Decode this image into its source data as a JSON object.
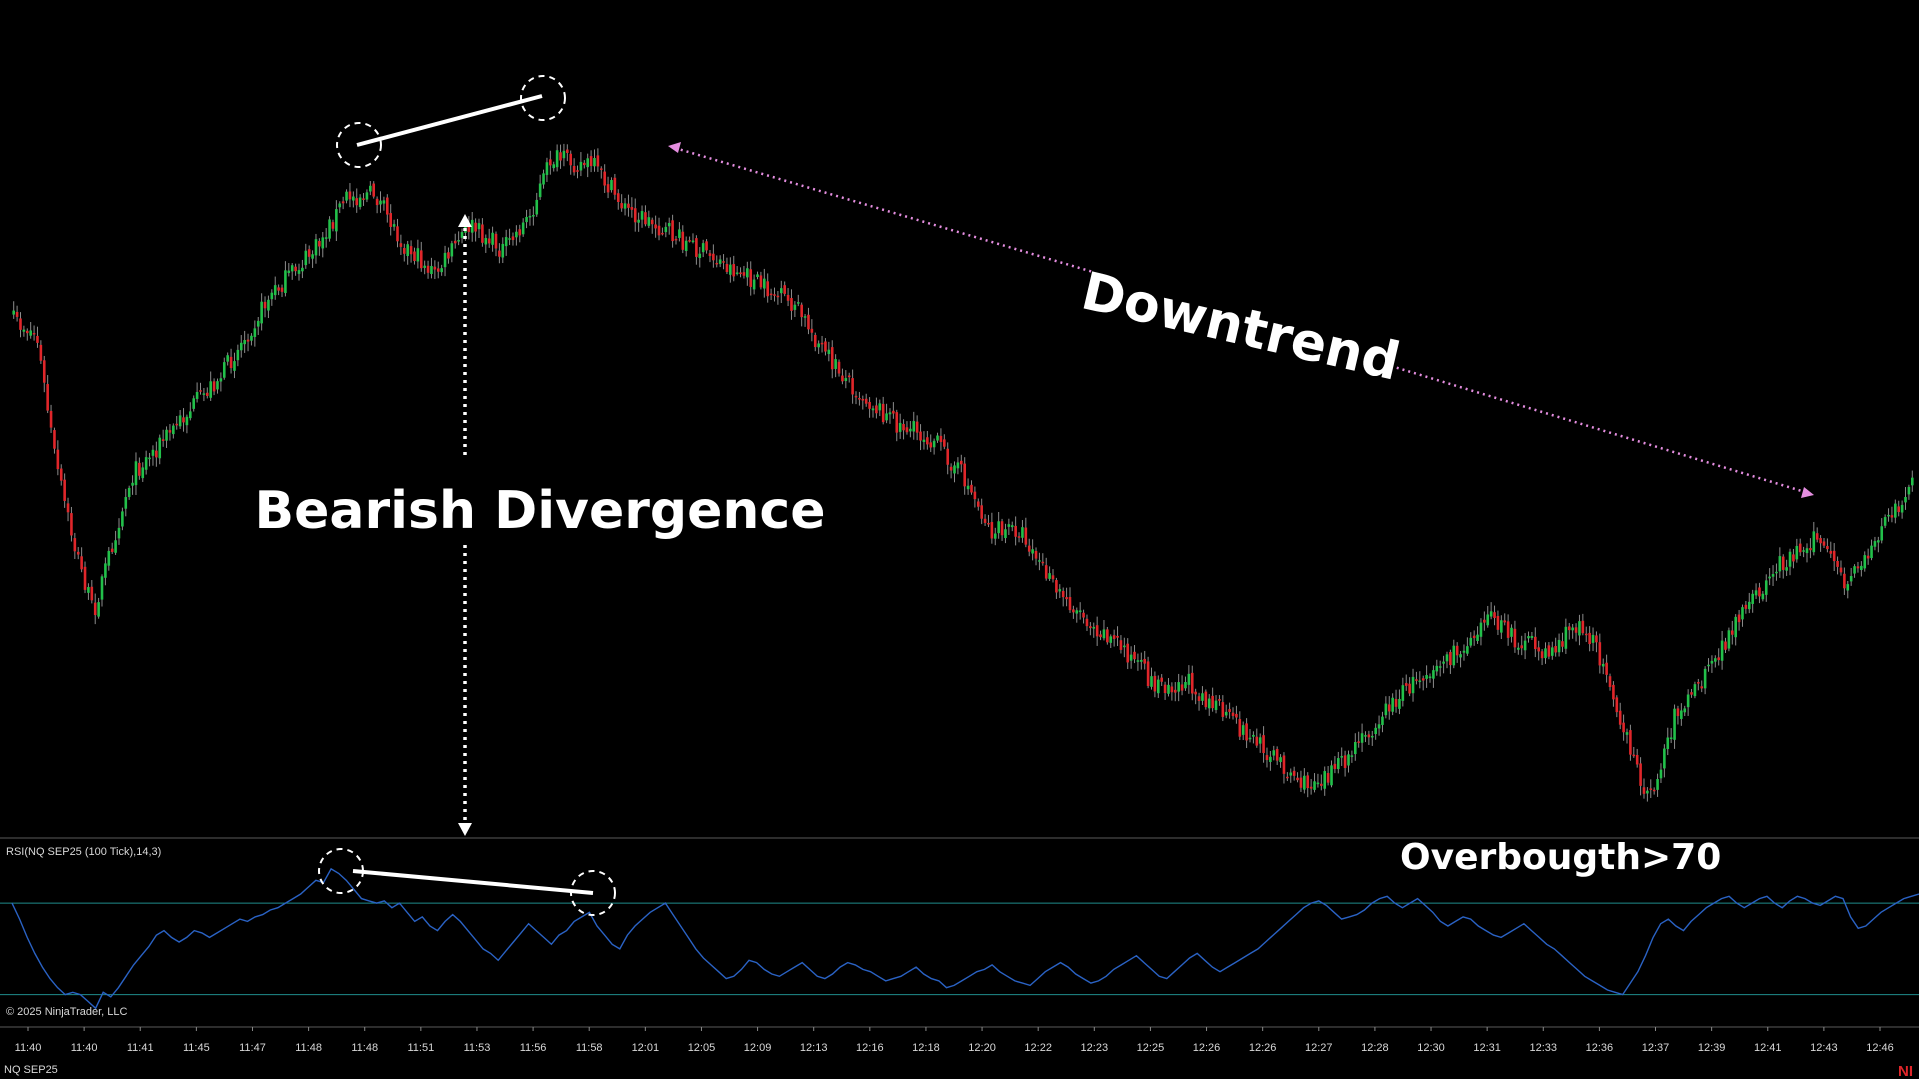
{
  "chart_data": [
    {
      "type": "candlestick",
      "series_name": "NQ SEP25",
      "up_color": "#22c04a",
      "down_color": "#e0262a",
      "wick_color": "#8c8c8c",
      "price_path_relative": [
        [
          0.0,
          0.32
        ],
        [
          0.012,
          0.34
        ],
        [
          0.022,
          0.52
        ],
        [
          0.032,
          0.64
        ],
        [
          0.042,
          0.735
        ],
        [
          0.05,
          0.655
        ],
        [
          0.062,
          0.54
        ],
        [
          0.085,
          0.47
        ],
        [
          0.11,
          0.395
        ],
        [
          0.135,
          0.285
        ],
        [
          0.16,
          0.215
        ],
        [
          0.175,
          0.145
        ],
        [
          0.19,
          0.14
        ],
        [
          0.205,
          0.21
        ],
        [
          0.222,
          0.255
        ],
        [
          0.24,
          0.185
        ],
        [
          0.258,
          0.22
        ],
        [
          0.272,
          0.17
        ],
        [
          0.283,
          0.09
        ],
        [
          0.305,
          0.1
        ],
        [
          0.322,
          0.16
        ],
        [
          0.345,
          0.195
        ],
        [
          0.368,
          0.23
        ],
        [
          0.39,
          0.265
        ],
        [
          0.412,
          0.3
        ],
        [
          0.428,
          0.37
        ],
        [
          0.446,
          0.425
        ],
        [
          0.465,
          0.465
        ],
        [
          0.485,
          0.49
        ],
        [
          0.5,
          0.54
        ],
        [
          0.515,
          0.62
        ],
        [
          0.53,
          0.615
        ],
        [
          0.548,
          0.7
        ],
        [
          0.566,
          0.745
        ],
        [
          0.585,
          0.785
        ],
        [
          0.6,
          0.835
        ],
        [
          0.62,
          0.835
        ],
        [
          0.64,
          0.885
        ],
        [
          0.66,
          0.93
        ],
        [
          0.68,
          0.98
        ],
        [
          0.7,
          0.95
        ],
        [
          0.72,
          0.88
        ],
        [
          0.742,
          0.82
        ],
        [
          0.762,
          0.79
        ],
        [
          0.775,
          0.735
        ],
        [
          0.792,
          0.775
        ],
        [
          0.81,
          0.79
        ],
        [
          0.825,
          0.745
        ],
        [
          0.84,
          0.82
        ],
        [
          0.852,
          0.94
        ],
        [
          0.862,
          1.0
        ],
        [
          0.875,
          0.88
        ],
        [
          0.89,
          0.83
        ],
        [
          0.91,
          0.74
        ],
        [
          0.93,
          0.665
        ],
        [
          0.95,
          0.625
        ],
        [
          0.965,
          0.7
        ],
        [
          0.985,
          0.61
        ],
        [
          1.0,
          0.55
        ]
      ]
    },
    {
      "type": "line",
      "indicator": "RSI",
      "line_color": "#2a62c4",
      "levels": [
        70,
        30
      ],
      "level_color": "#1f8c8c",
      "y_range": [
        18,
        95
      ],
      "values": [
        70,
        63,
        55,
        48,
        42,
        37,
        33,
        30,
        31,
        30,
        27,
        24,
        31,
        29,
        33,
        38,
        43,
        47,
        51,
        56,
        58,
        55,
        53,
        55,
        58,
        57,
        55,
        57,
        59,
        61,
        63,
        62,
        64,
        65,
        67,
        68,
        70,
        72,
        74,
        77,
        80,
        79,
        85,
        83,
        80,
        76,
        72,
        71,
        70,
        71,
        68,
        70,
        66,
        62,
        64,
        60,
        58,
        62,
        65,
        62,
        58,
        54,
        50,
        48,
        45,
        49,
        53,
        57,
        61,
        58,
        55,
        52,
        56,
        58,
        62,
        64,
        66,
        60,
        56,
        52,
        50,
        56,
        60,
        63,
        66,
        68,
        70,
        65,
        60,
        55,
        50,
        46,
        43,
        40,
        37,
        38,
        41,
        45,
        44,
        41,
        39,
        38,
        40,
        42,
        44,
        41,
        38,
        37,
        39,
        42,
        44,
        43,
        41,
        40,
        38,
        36,
        37,
        38,
        40,
        42,
        39,
        37,
        36,
        33,
        34,
        36,
        38,
        40,
        41,
        43,
        40,
        38,
        36,
        35,
        34,
        37,
        40,
        42,
        44,
        42,
        39,
        37,
        35,
        36,
        38,
        41,
        43,
        45,
        47,
        44,
        41,
        38,
        37,
        40,
        43,
        46,
        48,
        45,
        42,
        40,
        42,
        44,
        46,
        48,
        50,
        53,
        56,
        59,
        62,
        65,
        68,
        70,
        71,
        69,
        66,
        63,
        64,
        65,
        67,
        70,
        72,
        73,
        70,
        68,
        70,
        72,
        69,
        66,
        62,
        60,
        62,
        64,
        63,
        60,
        58,
        56,
        55,
        57,
        59,
        61,
        58,
        55,
        52,
        50,
        47,
        44,
        41,
        38,
        36,
        34,
        32,
        31,
        30,
        35,
        40,
        47,
        55,
        61,
        63,
        60,
        58,
        62,
        65,
        68,
        70,
        72,
        73,
        70,
        68,
        70,
        72,
        73,
        70,
        68,
        71,
        73,
        72,
        70,
        69,
        71,
        73,
        72,
        64,
        59,
        60,
        63,
        66,
        68,
        70,
        72,
        73,
        74
      ]
    }
  ],
  "rsi_caption": "RSI(NQ SEP25 (100 Tick),14,3)",
  "copyright": "© 2025 NinjaTrader, LLC",
  "instrument_caption": "NQ SEP25",
  "corner_logo": "NI",
  "annotations": {
    "bearish_divergence": "Bearish Divergence",
    "downtrend": "Downtrend",
    "overbought": "Overbougth>70"
  },
  "time_axis": [
    "11:40",
    "11:40",
    "11:41",
    "11:45",
    "11:47",
    "11:48",
    "11:48",
    "11:51",
    "11:53",
    "11:56",
    "11:58",
    "12:01",
    "12:05",
    "12:09",
    "12:13",
    "12:16",
    "12:18",
    "12:20",
    "12:22",
    "12:23",
    "12:25",
    "12:26",
    "12:26",
    "12:27",
    "12:28",
    "12:30",
    "12:31",
    "12:33",
    "12:36",
    "12:37",
    "12:39",
    "12:41",
    "12:43",
    "12:46"
  ]
}
